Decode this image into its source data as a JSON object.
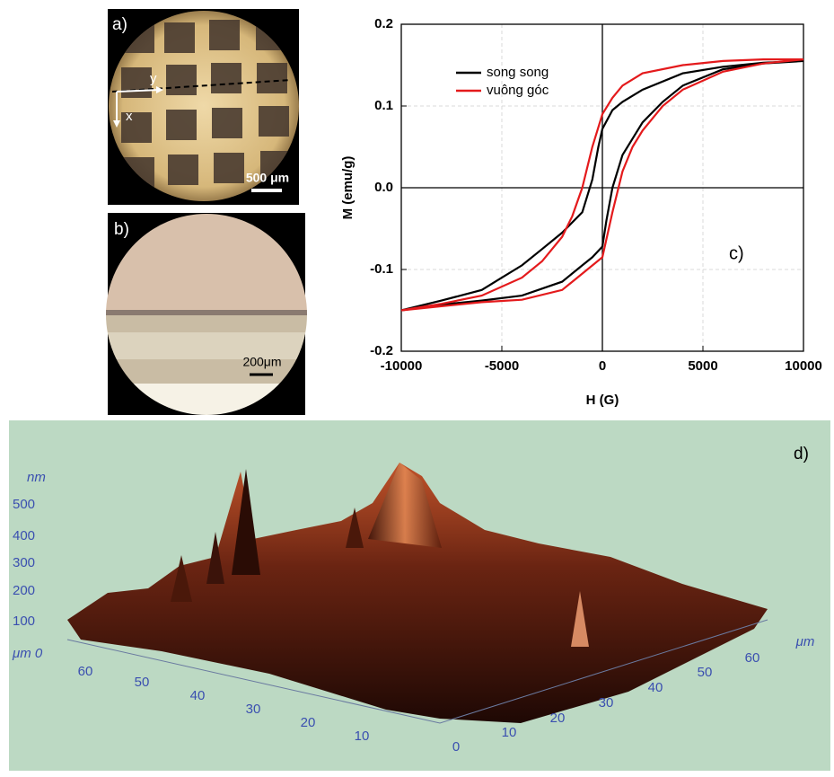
{
  "chart_data": {
    "type": "line",
    "x_label": "H (G)",
    "y_label": "M (emu/g)",
    "annotation": "c)",
    "xlim": [
      -10000,
      10000
    ],
    "xticks": [
      -10000,
      -5000,
      0,
      5000,
      10000
    ],
    "ylim": [
      -0.2,
      0.2
    ],
    "yticks": [
      -0.2,
      -0.1,
      {
        "value": 0,
        "label": "0.0"
      },
      0.1,
      0.2
    ],
    "grid": true,
    "legend": "upper-left",
    "series": [
      {
        "name": "song song",
        "color": "#000000",
        "x": [
          10000,
          8000,
          6000,
          4000,
          2000,
          1000,
          500,
          0,
          -200,
          -500,
          -1000,
          -2000,
          -3000,
          -4000,
          -5000,
          -6000,
          -8000,
          -10000,
          -8000,
          -6000,
          -4000,
          -2000,
          -1000,
          -500,
          0,
          200,
          500,
          1000,
          2000,
          3000,
          4000,
          6000,
          8000,
          10000
        ],
        "values": [
          0.155,
          0.153,
          0.148,
          0.14,
          0.12,
          0.105,
          0.095,
          0.072,
          0.05,
          0.01,
          -0.03,
          -0.055,
          -0.075,
          -0.095,
          -0.11,
          -0.125,
          -0.138,
          -0.15,
          -0.143,
          -0.138,
          -0.132,
          -0.115,
          -0.095,
          -0.085,
          -0.072,
          -0.04,
          0.0,
          0.04,
          0.08,
          0.105,
          0.125,
          0.145,
          0.152,
          0.155
        ]
      },
      {
        "name": "vuông góc",
        "color": "#e41a1c",
        "x": [
          10000,
          8000,
          6000,
          4000,
          2000,
          1000,
          500,
          0,
          -500,
          -1000,
          -1500,
          -2000,
          -3000,
          -4000,
          -6000,
          -8000,
          -10000,
          -8000,
          -6000,
          -4000,
          -2000,
          -1000,
          0,
          500,
          1000,
          1500,
          2000,
          3000,
          4000,
          6000,
          8000,
          10000
        ],
        "values": [
          0.157,
          0.157,
          0.155,
          0.15,
          0.14,
          0.125,
          0.11,
          0.09,
          0.05,
          0.0,
          -0.035,
          -0.06,
          -0.09,
          -0.11,
          -0.132,
          -0.142,
          -0.15,
          -0.145,
          -0.14,
          -0.137,
          -0.125,
          -0.105,
          -0.085,
          -0.03,
          0.02,
          0.05,
          0.07,
          0.1,
          0.12,
          0.142,
          0.152,
          0.157
        ]
      }
    ]
  },
  "panels": {
    "a": {
      "label": "a)",
      "axis_y": "y",
      "axis_x": "x",
      "scale": "500 μm"
    },
    "b": {
      "label": "b)",
      "scale": "200μm"
    },
    "d": {
      "label": "d)",
      "z_unit": "nm",
      "z_ticks": [
        "500",
        "400",
        "300",
        "200",
        "100"
      ],
      "origin": "μm 0",
      "left_ticks": [
        "60",
        "50",
        "40",
        "30",
        "20",
        "10"
      ],
      "right_ticks": [
        "0",
        "10",
        "20",
        "30",
        "40",
        "50",
        "60"
      ],
      "right_unit": "μm"
    }
  }
}
